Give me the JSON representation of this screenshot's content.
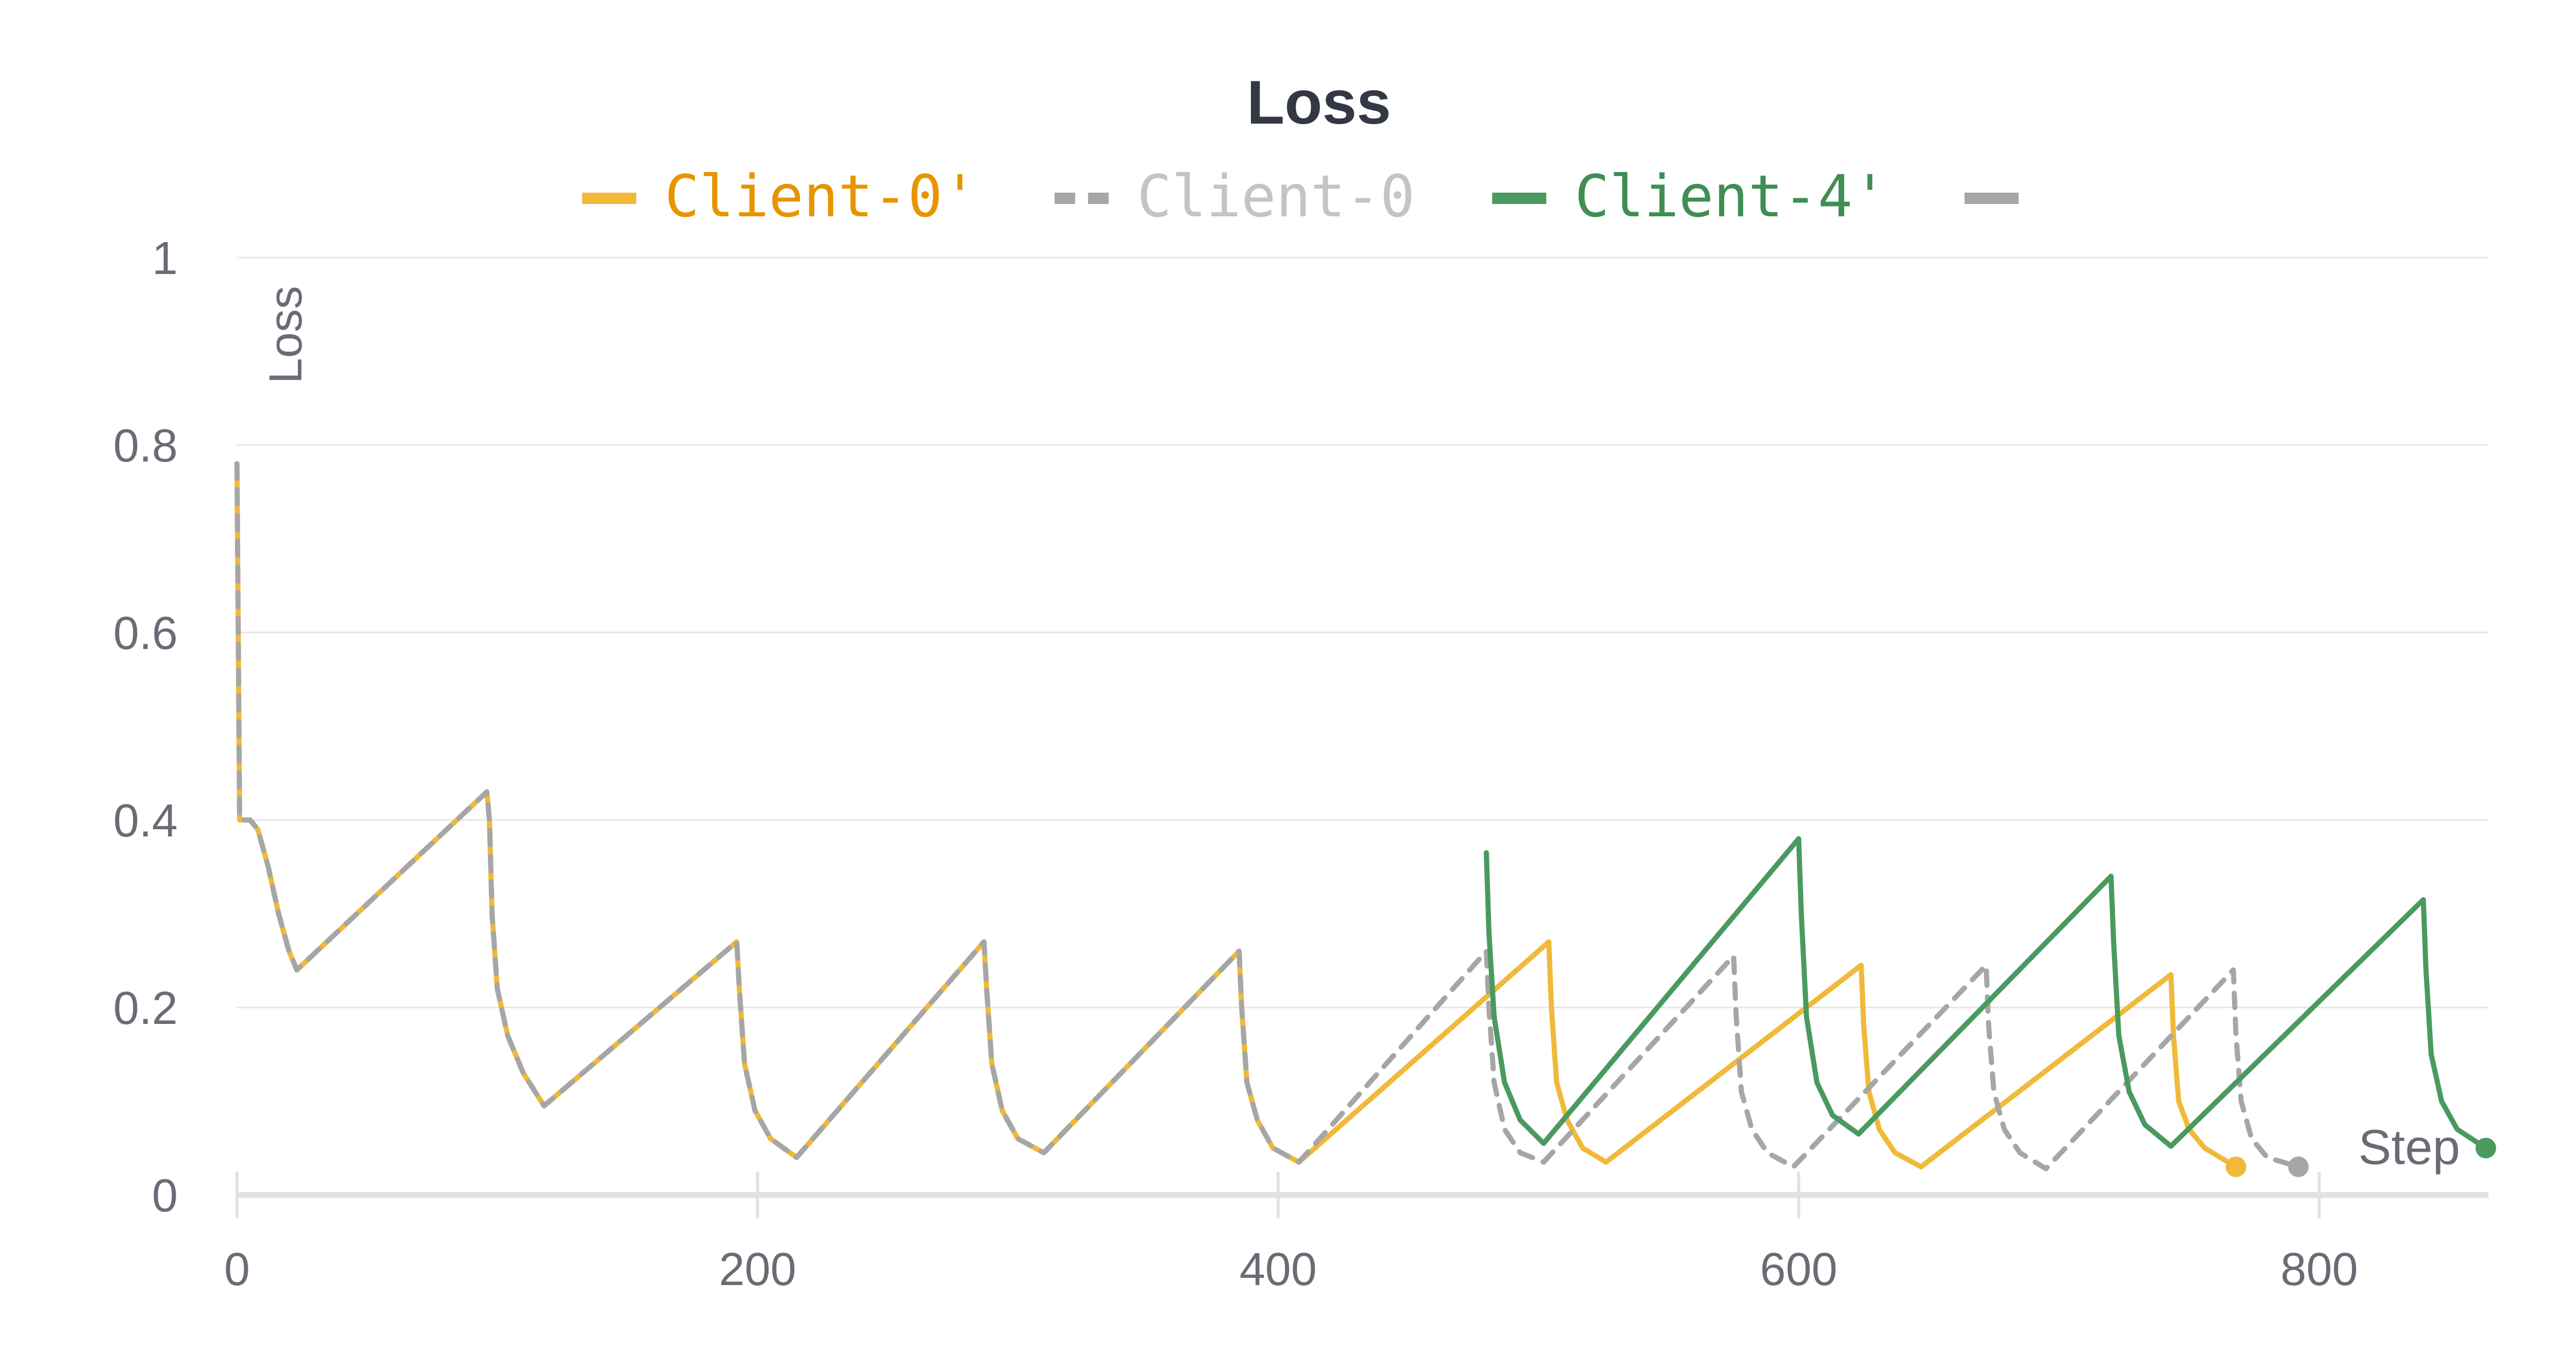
{
  "chart_data": {
    "type": "line",
    "title": "Loss",
    "xlabel": "Step",
    "ylabel": "Loss",
    "xlim": [
      0,
      865
    ],
    "ylim": [
      0,
      1
    ],
    "x_ticks": [
      0,
      200,
      400,
      600,
      800
    ],
    "y_ticks": [
      0,
      0.2,
      0.4,
      0.6,
      0.8,
      1
    ],
    "y_tick_labels": [
      "0",
      "0.2",
      "0.4",
      "0.6",
      "0.8",
      "1"
    ],
    "grid": true,
    "legend_position": "top",
    "series": [
      {
        "name": "Client-0'",
        "color": "#f0b93a",
        "legend_text_color": "#e69500",
        "dash": "solid",
        "end_marker": true,
        "points": [
          [
            0,
            0.78
          ],
          [
            1,
            0.4
          ],
          [
            5,
            0.4
          ],
          [
            8,
            0.39
          ],
          [
            12,
            0.35
          ],
          [
            16,
            0.3
          ],
          [
            20,
            0.26
          ],
          [
            23,
            0.24
          ],
          [
            96,
            0.43
          ],
          [
            97,
            0.4
          ],
          [
            98,
            0.3
          ],
          [
            100,
            0.22
          ],
          [
            104,
            0.17
          ],
          [
            110,
            0.13
          ],
          [
            118,
            0.095
          ],
          [
            192,
            0.27
          ],
          [
            193,
            0.22
          ],
          [
            195,
            0.14
          ],
          [
            199,
            0.09
          ],
          [
            205,
            0.06
          ],
          [
            215,
            0.04
          ],
          [
            287,
            0.27
          ],
          [
            288,
            0.22
          ],
          [
            290,
            0.14
          ],
          [
            294,
            0.09
          ],
          [
            300,
            0.06
          ],
          [
            310,
            0.045
          ],
          [
            385,
            0.26
          ],
          [
            386,
            0.2
          ],
          [
            388,
            0.12
          ],
          [
            392,
            0.08
          ],
          [
            398,
            0.05
          ],
          [
            408,
            0.035
          ],
          [
            504,
            0.27
          ],
          [
            505,
            0.2
          ],
          [
            507,
            0.12
          ],
          [
            511,
            0.08
          ],
          [
            517,
            0.05
          ],
          [
            526,
            0.035
          ],
          [
            624,
            0.245
          ],
          [
            625,
            0.18
          ],
          [
            627,
            0.11
          ],
          [
            631,
            0.07
          ],
          [
            637,
            0.045
          ],
          [
            647,
            0.03
          ],
          [
            743,
            0.235
          ],
          [
            744,
            0.17
          ],
          [
            746,
            0.1
          ],
          [
            750,
            0.07
          ],
          [
            756,
            0.05
          ],
          [
            768,
            0.03
          ]
        ]
      },
      {
        "name": "Client-0",
        "color": "#a6a6a6",
        "legend_text_color": "#c4c4c4",
        "dash": "dashed",
        "end_marker": true,
        "points": [
          [
            0,
            0.78
          ],
          [
            1,
            0.4
          ],
          [
            5,
            0.4
          ],
          [
            8,
            0.39
          ],
          [
            12,
            0.35
          ],
          [
            16,
            0.3
          ],
          [
            20,
            0.26
          ],
          [
            23,
            0.24
          ],
          [
            96,
            0.43
          ],
          [
            97,
            0.4
          ],
          [
            98,
            0.3
          ],
          [
            100,
            0.22
          ],
          [
            104,
            0.17
          ],
          [
            110,
            0.13
          ],
          [
            118,
            0.095
          ],
          [
            192,
            0.27
          ],
          [
            193,
            0.22
          ],
          [
            195,
            0.14
          ],
          [
            199,
            0.09
          ],
          [
            205,
            0.06
          ],
          [
            215,
            0.04
          ],
          [
            287,
            0.27
          ],
          [
            288,
            0.22
          ],
          [
            290,
            0.14
          ],
          [
            294,
            0.09
          ],
          [
            300,
            0.06
          ],
          [
            310,
            0.045
          ],
          [
            385,
            0.26
          ],
          [
            386,
            0.2
          ],
          [
            388,
            0.12
          ],
          [
            392,
            0.08
          ],
          [
            398,
            0.05
          ],
          [
            408,
            0.035
          ],
          [
            480,
            0.26
          ],
          [
            481,
            0.2
          ],
          [
            483,
            0.12
          ],
          [
            487,
            0.07
          ],
          [
            493,
            0.045
          ],
          [
            502,
            0.035
          ],
          [
            575,
            0.255
          ],
          [
            576,
            0.19
          ],
          [
            578,
            0.11
          ],
          [
            582,
            0.07
          ],
          [
            588,
            0.045
          ],
          [
            598,
            0.03
          ],
          [
            672,
            0.245
          ],
          [
            673,
            0.18
          ],
          [
            675,
            0.11
          ],
          [
            679,
            0.07
          ],
          [
            685,
            0.045
          ],
          [
            695,
            0.028
          ],
          [
            767,
            0.24
          ],
          [
            768,
            0.17
          ],
          [
            770,
            0.1
          ],
          [
            774,
            0.06
          ],
          [
            780,
            0.04
          ],
          [
            792,
            0.03
          ]
        ]
      },
      {
        "name": "Client-4'",
        "color": "#4a9a5f",
        "legend_text_color": "#3f8e54",
        "dash": "solid",
        "end_marker": true,
        "points": [
          [
            480,
            0.365
          ],
          [
            481,
            0.28
          ],
          [
            483,
            0.19
          ],
          [
            487,
            0.12
          ],
          [
            493,
            0.08
          ],
          [
            502,
            0.055
          ],
          [
            600,
            0.38
          ],
          [
            601,
            0.3
          ],
          [
            603,
            0.19
          ],
          [
            607,
            0.12
          ],
          [
            613,
            0.085
          ],
          [
            623,
            0.065
          ],
          [
            720,
            0.34
          ],
          [
            721,
            0.27
          ],
          [
            723,
            0.17
          ],
          [
            727,
            0.11
          ],
          [
            733,
            0.075
          ],
          [
            743,
            0.052
          ],
          [
            840,
            0.315
          ],
          [
            841,
            0.24
          ],
          [
            843,
            0.15
          ],
          [
            847,
            0.1
          ],
          [
            853,
            0.07
          ],
          [
            864,
            0.05
          ]
        ]
      },
      {
        "name": "",
        "color": "#a6a6a6",
        "legend_text_color": "#a6a6a6",
        "dash": "solid",
        "end_marker": false,
        "legend_only": true,
        "points": []
      }
    ]
  }
}
